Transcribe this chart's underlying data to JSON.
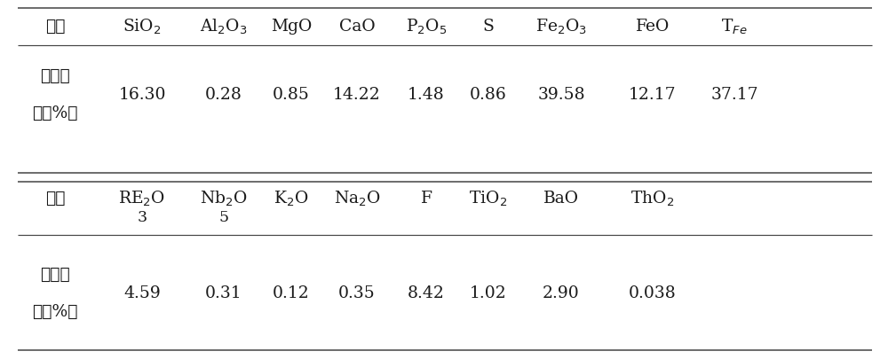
{
  "table1_headers": [
    "成分",
    "SiO$_2$",
    "Al$_2$O$_3$",
    "MgO",
    "CaO",
    "P$_2$O$_5$",
    "S",
    "Fe$_2$O$_3$",
    "FeO",
    "T$_{Fe}$"
  ],
  "table1_row_label_lines": [
    "质量含",
    "量（%）"
  ],
  "table1_values": [
    "16.30",
    "0.28",
    "0.85",
    "14.22",
    "1.48",
    "0.86",
    "39.58",
    "12.17",
    "37.17"
  ],
  "table2_headers_main": [
    "成分",
    "RE$_2$O",
    "Nb$_2$O",
    "K$_2$O",
    "Na$_2$O",
    "F",
    "TiO$_2$",
    "BaO",
    "ThO$_2$"
  ],
  "table2_headers_sub": [
    "",
    "3",
    "5",
    "",
    "",
    "",
    "",
    "",
    ""
  ],
  "table2_row_label_lines": [
    "质量含",
    "量（%）"
  ],
  "table2_values": [
    "4.59",
    "0.31",
    "0.12",
    "0.35",
    "8.42",
    "1.02",
    "2.90",
    "0.038",
    ""
  ],
  "bg_color": "#ffffff",
  "text_color": "#1a1a1a",
  "line_color": "#444444",
  "font_size": 13.5
}
